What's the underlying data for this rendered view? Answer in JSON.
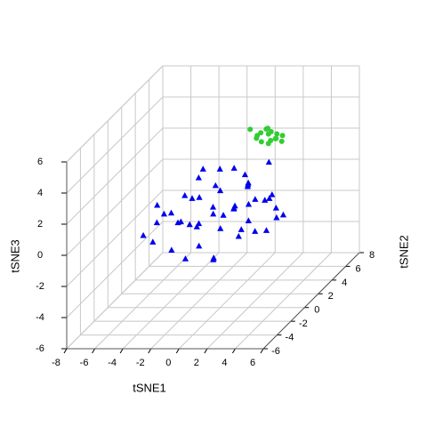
{
  "chart_data": {
    "type": "scatter3d",
    "xlabel": "tSNE1",
    "ylabel": "tSNE2",
    "zlabel": "tSNE3",
    "xlim": [
      -8,
      6
    ],
    "ylim": [
      -6,
      8
    ],
    "zlim": [
      -6,
      6
    ],
    "xticks": [
      -8,
      -6,
      -4,
      -2,
      0,
      2,
      4,
      6
    ],
    "yticks": [
      -6,
      -4,
      -2,
      0,
      2,
      4,
      6,
      8
    ],
    "zticks": [
      -6,
      -4,
      -2,
      0,
      2,
      4,
      6
    ],
    "grid": true,
    "series": [
      {
        "marker": "triangle",
        "color": "#0000ee",
        "x": [
          -4.5,
          -4,
          -3.5,
          -3,
          -2.5,
          -2,
          -1.5,
          -1,
          -0.5,
          0,
          0.5,
          1,
          1.5,
          2,
          2.5,
          3,
          3.5,
          -5,
          -3,
          -2,
          0,
          1,
          2,
          -1,
          0.5,
          3,
          -2,
          0,
          1.5,
          -4,
          -1,
          2,
          4,
          -0.5,
          0.8,
          -2.8,
          1.2,
          -1.8,
          2.8,
          -3.5,
          0,
          -1.2,
          1.8,
          3.2,
          -0.2,
          0.3,
          -2.2,
          2.2,
          -4.8,
          4.5
        ],
        "y": [
          -2,
          0,
          1,
          -1,
          2,
          0,
          -2,
          1,
          3,
          0,
          -1,
          2,
          0,
          1,
          -1,
          2,
          0,
          1,
          3,
          -3,
          4,
          -3,
          3,
          2,
          1,
          -2,
          1,
          -1,
          2,
          -1,
          -1,
          0,
          1,
          0,
          0.5,
          0,
          -2,
          3,
          1,
          2,
          2,
          -2,
          -1,
          1,
          -3,
          3,
          2,
          2,
          0,
          -1
        ],
        "z": [
          -0.5,
          0,
          -1,
          0.5,
          -1.5,
          1,
          -2,
          0,
          -1,
          1.5,
          -0.5,
          1,
          -1,
          0.5,
          0,
          -0.5,
          1,
          -1,
          1,
          -1,
          0,
          -1.5,
          2,
          2,
          2.5,
          1.5,
          -2.5,
          -2.5,
          -2,
          1,
          1.5,
          2,
          -0.5,
          0,
          0.3,
          -0.5,
          0.8,
          0.5,
          -1.5,
          0.3,
          -0.5,
          0.2,
          -1,
          0.8,
          0.5,
          1.2,
          2,
          0,
          -1.8,
          0.2
        ]
      },
      {
        "marker": "circle",
        "color": "#33cc33",
        "x": [
          0,
          0.5,
          1,
          0.2,
          0.8,
          -0.3,
          1.2,
          0.4,
          0.6,
          -0.5,
          1.5,
          0.1,
          0.9,
          0.3,
          -0.8,
          1.3
        ],
        "y": [
          6,
          6,
          6,
          5.5,
          6.5,
          6,
          5.8,
          6.2,
          5.7,
          6.3,
          6,
          6.5,
          5.5,
          6.8,
          6,
          6.3
        ],
        "z": [
          2,
          2.5,
          2.2,
          2.8,
          2,
          2.4,
          2.6,
          1.8,
          3,
          2.1,
          2.4,
          2.6,
          2.3,
          2.3,
          2.8,
          1.9
        ]
      }
    ]
  }
}
